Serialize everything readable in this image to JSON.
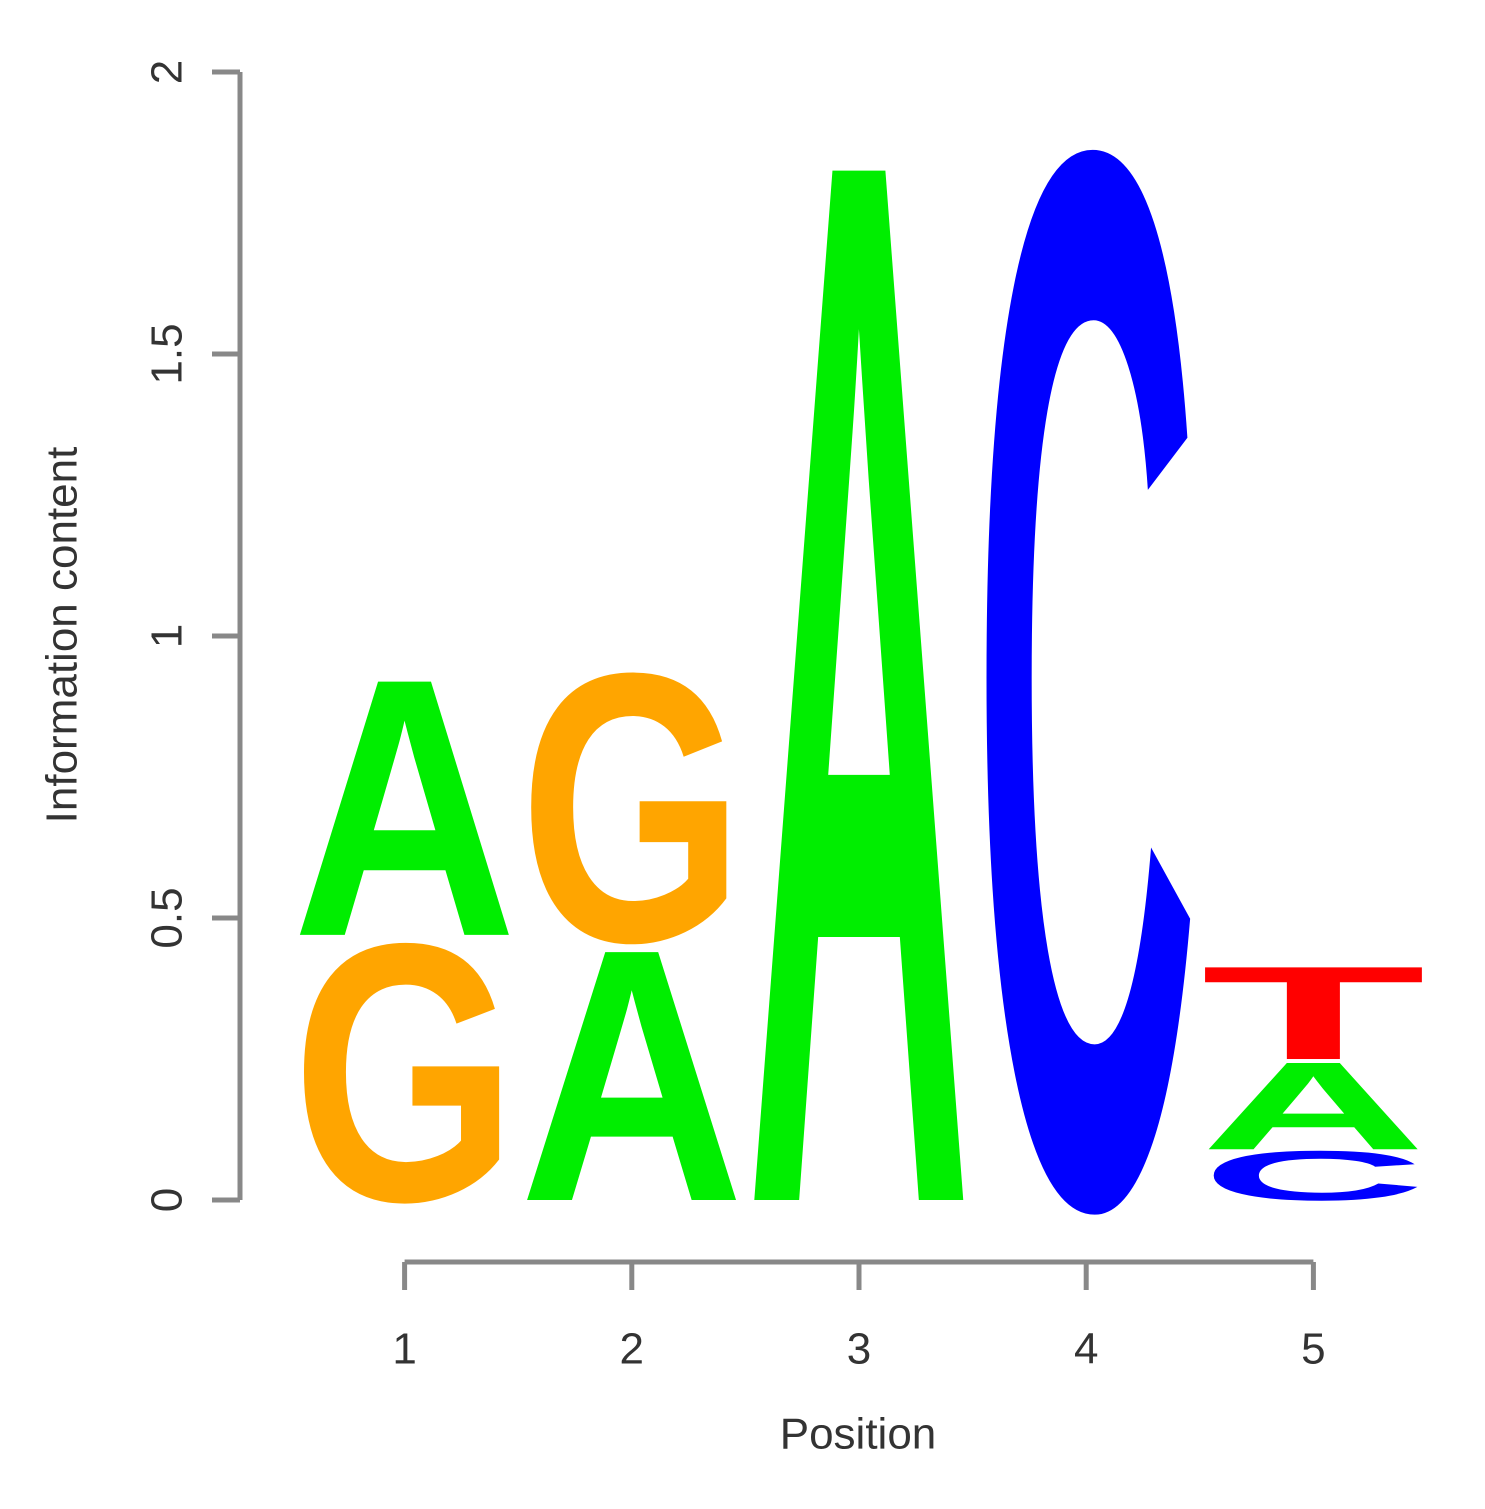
{
  "chart_data": {
    "type": "logo",
    "xlabel": "Position",
    "ylabel": "Information content",
    "x": [
      1,
      2,
      3,
      4,
      5
    ],
    "xlim": [
      0.5,
      5.5
    ],
    "xticks": [
      1,
      2,
      3,
      4,
      5
    ],
    "ylim": [
      0,
      2
    ],
    "yticks": [
      0,
      0.5,
      1,
      1.5,
      2
    ],
    "colors": {
      "A": "#00ee00",
      "C": "#0000ff",
      "G": "#ffa500",
      "T": "#ff0000"
    },
    "stacks": [
      {
        "letters": [
          "G",
          "A"
        ],
        "values": [
          0.47,
          0.47
        ]
      },
      {
        "letters": [
          "A",
          "G"
        ],
        "values": [
          0.46,
          0.49
        ]
      },
      {
        "letters": [
          "A"
        ],
        "values": [
          1.91
        ]
      },
      {
        "letters": [
          "C"
        ],
        "values": [
          1.92
        ]
      },
      {
        "letters": [
          "C",
          "A",
          "T"
        ],
        "values": [
          0.09,
          0.16,
          0.17
        ]
      }
    ]
  }
}
